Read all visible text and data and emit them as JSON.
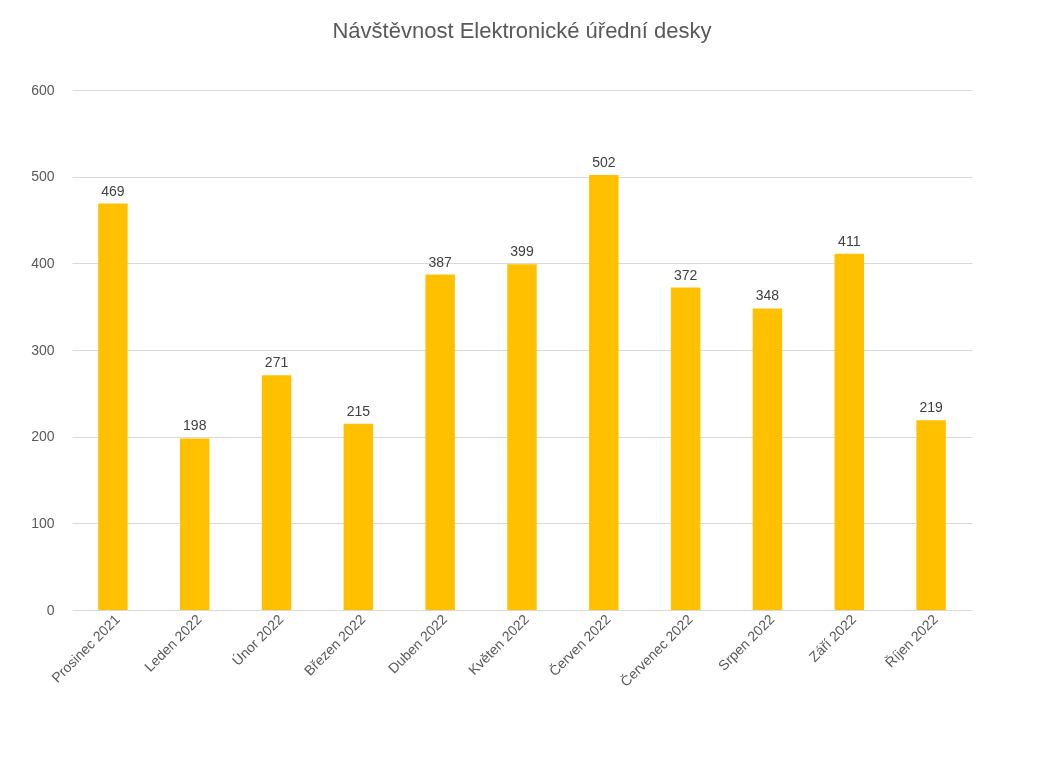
{
  "chart_data": {
    "type": "bar",
    "title": "Návštěvnost Elektronické úřední desky",
    "categories": [
      "Prosinec 2021",
      "Leden 2022",
      "Únor 2022",
      "Březen 2022",
      "Duben 2022",
      "Květen 2022",
      "Červen 2022",
      "Červenec 2022",
      "Srpen 2022",
      "Září 2022",
      "Říjen 2022"
    ],
    "values": [
      469,
      198,
      271,
      215,
      387,
      399,
      502,
      372,
      348,
      411,
      219
    ],
    "color": "#ffc000",
    "ylim": [
      0,
      600
    ],
    "yticks": [
      0,
      100,
      200,
      300,
      400,
      500,
      600
    ],
    "grid": "y",
    "data_labels": true
  }
}
